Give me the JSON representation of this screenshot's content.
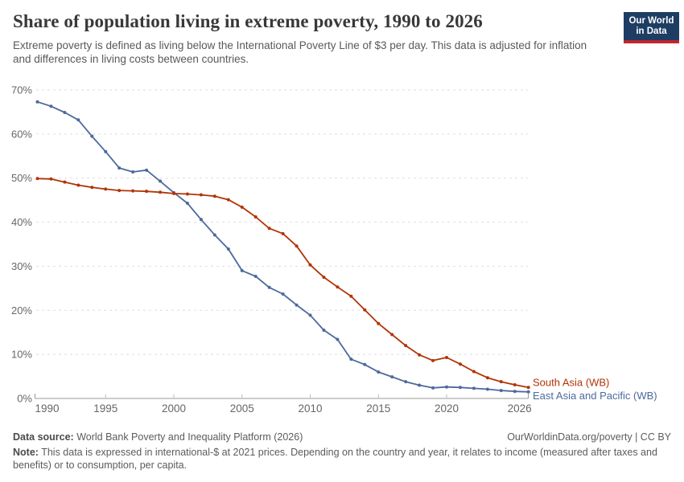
{
  "header": {
    "subtitle": "Extreme poverty is defined as living below the International Poverty Line of $3 per day. This data is adjusted for inflation and differences in living costs between countries.",
    "logo": {
      "line1": "Our World",
      "line2": "in Data"
    }
  },
  "chart_data": {
    "type": "line",
    "title": "Share of population living in extreme poverty, 1990 to 2026",
    "x": [
      1990,
      1991,
      1992,
      1993,
      1994,
      1995,
      1996,
      1997,
      1998,
      1999,
      2000,
      2001,
      2002,
      2003,
      2004,
      2005,
      2006,
      2007,
      2008,
      2009,
      2010,
      2011,
      2012,
      2013,
      2014,
      2015,
      2016,
      2017,
      2018,
      2019,
      2020,
      2021,
      2022,
      2023,
      2024,
      2025,
      2026
    ],
    "series": [
      {
        "name": "South Asia (WB)",
        "color": "#b13507",
        "label_offset_y": -2,
        "values": [
          49.9,
          49.8,
          49.1,
          48.4,
          47.9,
          47.5,
          47.2,
          47.1,
          47.0,
          46.8,
          46.5,
          46.4,
          46.2,
          45.9,
          45.1,
          43.4,
          41.2,
          38.6,
          37.4,
          34.6,
          30.3,
          27.5,
          25.3,
          23.2,
          20.1,
          17.0,
          14.5,
          12.0,
          9.9,
          8.6,
          9.3,
          7.8,
          6.1,
          4.7,
          3.8,
          3.1,
          2.5
        ]
      },
      {
        "name": "East Asia and Pacific (WB)",
        "color": "#4c6a9c",
        "label_offset_y": 9,
        "values": [
          67.3,
          66.3,
          64.9,
          63.2,
          59.5,
          56.0,
          52.3,
          51.4,
          51.8,
          49.3,
          46.7,
          44.3,
          40.6,
          37.1,
          33.9,
          29.0,
          27.7,
          25.2,
          23.7,
          21.2,
          18.9,
          15.5,
          13.4,
          8.9,
          7.7,
          6.0,
          4.9,
          3.8,
          3.0,
          2.4,
          2.6,
          2.5,
          2.3,
          2.1,
          1.8,
          1.6,
          1.5
        ]
      }
    ],
    "ylim": [
      0,
      70
    ],
    "yticks": [
      0,
      10,
      20,
      30,
      40,
      50,
      60,
      70
    ],
    "ytick_suffix": "%",
    "xticks": [
      1990,
      1995,
      2000,
      2005,
      2010,
      2015,
      2020,
      2026
    ],
    "grid": true,
    "legend_position": "end-of-line-labels",
    "colors": {
      "grid": "#dedede",
      "axis": "#999999",
      "tick": "#bbbbbb",
      "tick_label": "#666666"
    }
  },
  "footer": {
    "datasource_label": "Data source:",
    "datasource": " World Bank Poverty and Inequality Platform (2026)",
    "citation": "OurWorldinData.org/poverty | CC BY",
    "note_label": "Note:",
    "note": " This data is expressed in international-$ at 2021 prices. Depending on the country and year, it relates to income (measured after taxes and benefits) or to consumption, per capita."
  }
}
